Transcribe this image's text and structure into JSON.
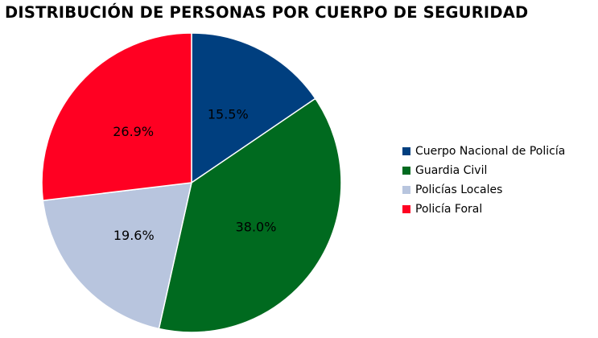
{
  "chart_data": {
    "type": "pie",
    "title": "DISTRIBUCIÓN DE PERSONAS POR CUERPO DE SEGURIDAD",
    "categories": [
      "Cuerpo Nacional de Policía",
      "Guardia Civil",
      "Policías Locales",
      "Policía Foral"
    ],
    "values": [
      15.5,
      38.0,
      19.6,
      26.9
    ],
    "labels": [
      "15.5%",
      "38.0%",
      "19.6%",
      "26.9%"
    ],
    "colors": [
      "#003f7f",
      "#006a1f",
      "#b8c5de",
      "#ff0022"
    ],
    "legend_position": "right",
    "start_angle": "top, clockwise"
  }
}
